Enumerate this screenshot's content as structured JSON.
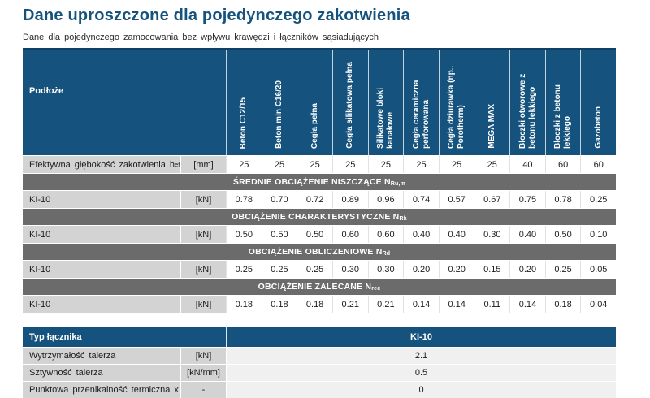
{
  "page": {
    "title": "Dane uproszczone dla pojedynczego zakotwienia",
    "subtitle": "Dane dla pojedynczego zamocowania bez wpływu krawędzi i łączników sąsiadujących"
  },
  "colors": {
    "header_blue": "#15537E",
    "section_gray": "#6B6B6B",
    "label_gray": "#D3D3D3",
    "bottom_value_bg": "#F0F0F0"
  },
  "main_table": {
    "corner_label": "Podłoże",
    "columns": [
      "Beton C12/15",
      "Beton min C16/20",
      "Cegła pełna",
      "Cegła silikatowa pełna",
      "Silikatowe bloki kanałowe",
      "Cegła ceramiczna perforowana",
      "Cegła dziurawka (np.. Porotherm)",
      "MEGA MAX",
      "Bloczki otworowe z betonu lekkiego",
      "Bloczki z betonu lekkiego",
      "Gazobeton"
    ],
    "embedment_row": {
      "label": "Efektywna głębokość zakotwienia h",
      "label_sub": "ef",
      "unit": "[mm]",
      "values": [
        "25",
        "25",
        "25",
        "25",
        "25",
        "25",
        "25",
        "25",
        "40",
        "60",
        "60"
      ]
    },
    "sections": [
      {
        "heading": "ŚREDNIE OBCIĄŻENIE NISZCZĄCE N",
        "heading_sub": "Ru,m",
        "row_label": "KI-10",
        "unit": "[kN]",
        "values": [
          "0.78",
          "0.70",
          "0.72",
          "0.89",
          "0.96",
          "0.74",
          "0.57",
          "0.67",
          "0.75",
          "0.78",
          "0.25"
        ]
      },
      {
        "heading": "OBCIĄŻENIE CHARAKTERYSTYCZNE N",
        "heading_sub": "Rk",
        "row_label": "KI-10",
        "unit": "[kN]",
        "values": [
          "0.50",
          "0.50",
          "0.50",
          "0.60",
          "0.60",
          "0.40",
          "0.40",
          "0.30",
          "0.40",
          "0.50",
          "0.10"
        ]
      },
      {
        "heading": "OBCIĄŻENIE OBLICZENIOWE N",
        "heading_sub": "Rd",
        "row_label": "KI-10",
        "unit": "[kN]",
        "values": [
          "0.25",
          "0.25",
          "0.25",
          "0.30",
          "0.30",
          "0.20",
          "0.20",
          "0.15",
          "0.20",
          "0.25",
          "0.05"
        ]
      },
      {
        "heading": "OBCIĄŻENIE ZALECANE N",
        "heading_sub": "rec",
        "row_label": "KI-10",
        "unit": "[kN]",
        "values": [
          "0.18",
          "0.18",
          "0.18",
          "0.21",
          "0.21",
          "0.14",
          "0.14",
          "0.11",
          "0.14",
          "0.18",
          "0.04"
        ]
      }
    ]
  },
  "bottom_table": {
    "header_label": "Typ łącznika",
    "header_value": "KI-10",
    "rows": [
      {
        "label": "Wytrzymałość talerza",
        "unit": "[kN]",
        "value": "2.1"
      },
      {
        "label": "Sztywność talerza",
        "unit": "[kN/mm]",
        "value": "0.5"
      },
      {
        "label": "Punktowa przenikalność termiczna x",
        "unit": "-",
        "value": "0"
      }
    ]
  }
}
